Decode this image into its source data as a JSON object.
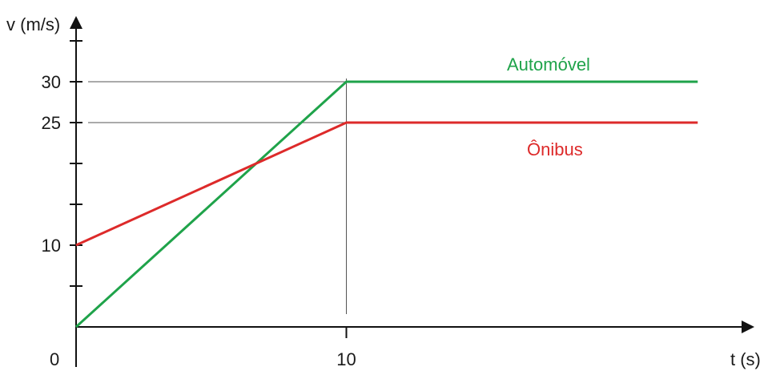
{
  "chart_data": {
    "type": "line",
    "ylabel": "v (m/s)",
    "xlabel": "t (s)",
    "origin_label": "0",
    "xlim": [
      0,
      25
    ],
    "ylim": [
      0,
      36
    ],
    "x_ticks": [
      {
        "value": 10,
        "label": "10"
      }
    ],
    "y_ticks": [
      {
        "value": 5,
        "label": ""
      },
      {
        "value": 10,
        "label": "10"
      },
      {
        "value": 15,
        "label": ""
      },
      {
        "value": 20,
        "label": ""
      },
      {
        "value": 25,
        "label": "25"
      },
      {
        "value": 30,
        "label": "30"
      },
      {
        "value": 35,
        "label": ""
      }
    ],
    "guide_lines": [
      {
        "y": 30,
        "x_end": 10
      },
      {
        "y": 25,
        "x_end": 10
      },
      {
        "x": 10,
        "y_end": 30
      }
    ],
    "series": [
      {
        "name": "Automóvel",
        "color": "#1fa34a",
        "x": [
          0,
          10,
          23
        ],
        "y": [
          0,
          30,
          30
        ]
      },
      {
        "name": "Ônibus",
        "color": "#dd2a2a",
        "x": [
          0,
          10,
          23
        ],
        "y": [
          10,
          25,
          25
        ]
      }
    ],
    "legend": "inline labels near line ends",
    "grid": false
  }
}
